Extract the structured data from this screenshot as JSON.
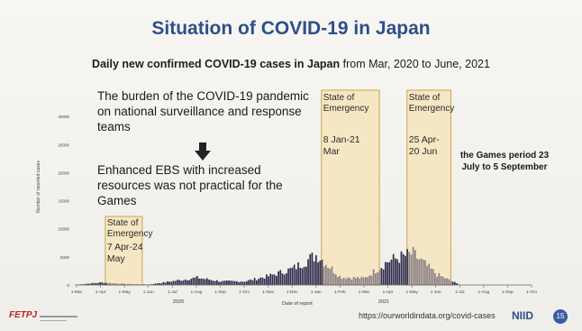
{
  "slide": {
    "title": "Situation of COVID-19 in Japan",
    "subtitle_bold": "Daily new confirmed COVID-19 cases in Japan",
    "subtitle_rest": " from Mar, 2020 to June, 2021",
    "burden_text": "The burden of the COVID-19 pandemic on national surveillance and response teams",
    "enhanced_text": "Enhanced EBS with increased resources was not practical for the Games",
    "games_text": "the Games period 23 July to 5 September",
    "source_url": "https://ourworldindata.org/covid-cases",
    "logo_left": "FETPJ",
    "logo_right": "NIID",
    "page_number": "15"
  },
  "chart_data": {
    "type": "bar",
    "title": "",
    "ylabel": "Number of reported cases",
    "xlabel": "Date of report",
    "ylim": [
      0,
      35000
    ],
    "yticks": [
      0,
      5000,
      10000,
      15000,
      20000,
      25000,
      30000
    ],
    "ytick_labels": [
      "0",
      "5000",
      "10000",
      "15000",
      "20000",
      "25000",
      "30000"
    ],
    "xticks": [
      "1-Mar",
      "1-Apr",
      "1-May",
      "1-Jun",
      "1-Jul",
      "1-Aug",
      "1-Sep",
      "1-Oct",
      "1-Nov",
      "1-Dec",
      "1-Jan",
      "1-Feb",
      "1-Mar",
      "1-Apr",
      "1-May",
      "1-Jun",
      "1-Jul",
      "1-Aug",
      "1-Sep",
      "1-Oct"
    ],
    "year_labels": [
      {
        "label": "2020",
        "at": "1-Aug"
      },
      {
        "label": "2021",
        "at": "1-Apr"
      }
    ],
    "monthly_cases": [
      {
        "month": "2020-03",
        "value": 60
      },
      {
        "month": "2020-04",
        "value": 450
      },
      {
        "month": "2020-05",
        "value": 180
      },
      {
        "month": "2020-06",
        "value": 80
      },
      {
        "month": "2020-07",
        "value": 700
      },
      {
        "month": "2020-08",
        "value": 1300
      },
      {
        "month": "2020-09",
        "value": 650
      },
      {
        "month": "2020-10",
        "value": 650
      },
      {
        "month": "2020-11",
        "value": 1600
      },
      {
        "month": "2020-12",
        "value": 2900
      },
      {
        "month": "2021-01",
        "value": 5400
      },
      {
        "month": "2021-02",
        "value": 1400
      },
      {
        "month": "2021-03",
        "value": 1200
      },
      {
        "month": "2021-04",
        "value": 4300
      },
      {
        "month": "2021-05",
        "value": 5600
      },
      {
        "month": "2021-06",
        "value": 1900
      },
      {
        "month": "2021-07",
        "value": 0
      },
      {
        "month": "2021-08",
        "value": 0
      },
      {
        "month": "2021-09",
        "value": 0
      },
      {
        "month": "2021-10",
        "value": 0
      }
    ],
    "state_of_emergency": [
      {
        "label": "State of Emergency",
        "dates": "7 Apr-24 May",
        "start": "2020-04-07",
        "end": "2020-05-24"
      },
      {
        "label": "State of Emergency",
        "dates": "8 Jan-21 Mar",
        "start": "2021-01-08",
        "end": "2021-03-21"
      },
      {
        "label": "State of Emergency",
        "dates": "25 Apr-20 Jun",
        "start": "2021-04-25",
        "end": "2021-06-20"
      }
    ],
    "colors": {
      "bars": "#2e2a4a",
      "bars_in_emergency": "#8a7f86",
      "emergency_fill": "#f6e7c4",
      "emergency_border": "#c9a64a"
    }
  }
}
